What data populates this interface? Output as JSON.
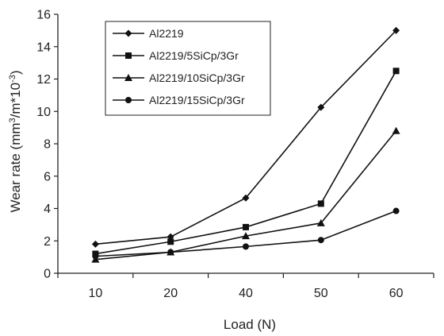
{
  "chart_data": {
    "type": "line",
    "title": "",
    "xlabel": "Load (N)",
    "ylabel_prefix": "Wear rate (mm",
    "ylabel_sup1": "3",
    "ylabel_mid": "/m*10",
    "ylabel_sup2": "-3",
    "ylabel_suffix": ")",
    "categories": [
      "10",
      "20",
      "40",
      "50",
      "60"
    ],
    "ylim": [
      0,
      16
    ],
    "yticks": [
      "0",
      "2",
      "4",
      "6",
      "8",
      "10",
      "12",
      "14",
      "16"
    ],
    "grid": false,
    "legend_position": "top-left",
    "series": [
      {
        "name": "Al2219",
        "marker": "diamond",
        "values": [
          1.8,
          2.25,
          4.65,
          10.25,
          15.0
        ]
      },
      {
        "name": "Al2219/5SiCp/3Gr",
        "marker": "square",
        "values": [
          1.2,
          1.95,
          2.85,
          4.3,
          12.5
        ]
      },
      {
        "name": "Al2219/10SiCp/3Gr",
        "marker": "triangle",
        "values": [
          0.85,
          1.3,
          2.3,
          3.1,
          8.8
        ]
      },
      {
        "name": "Al2219/15SiCp/3Gr",
        "marker": "circle",
        "values": [
          1.05,
          1.3,
          1.65,
          2.05,
          3.85
        ]
      }
    ]
  }
}
